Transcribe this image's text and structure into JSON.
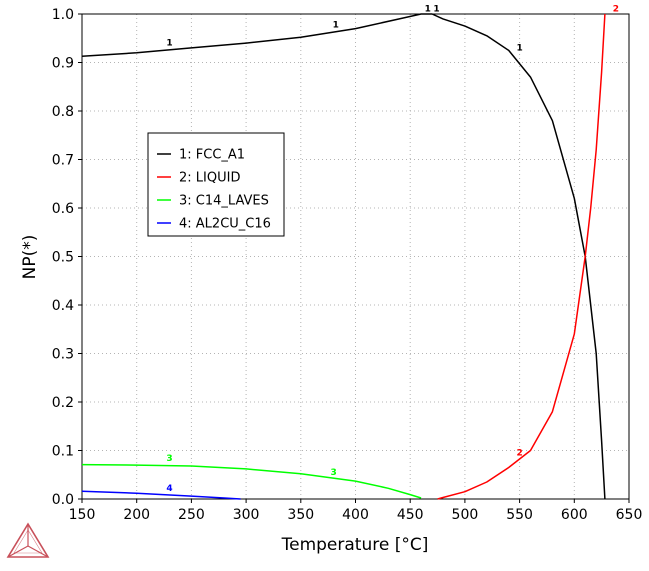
{
  "chart_data": {
    "type": "line",
    "xlabel": "Temperature [°C]",
    "ylabel": "NP(*)",
    "xlim": [
      150,
      650
    ],
    "ylim": [
      0,
      1.0
    ],
    "xticks": [
      150,
      200,
      250,
      300,
      350,
      400,
      450,
      500,
      550,
      600,
      650
    ],
    "yticks": [
      0.0,
      0.1,
      0.2,
      0.3,
      0.4,
      0.5,
      0.6,
      0.7,
      0.8,
      0.9,
      1.0
    ],
    "ytick_labels": [
      "0.0",
      "0.1",
      "0.2",
      "0.3",
      "0.4",
      "0.5",
      "0.6",
      "0.7",
      "0.8",
      "0.9",
      "1.0"
    ],
    "grid": true,
    "legend_position": "upper-left",
    "series": [
      {
        "id": "1",
        "name": "1: FCC_A1",
        "color": "#000000",
        "x": [
          150,
          200,
          250,
          300,
          350,
          400,
          440,
          460,
          470,
          480,
          500,
          520,
          540,
          560,
          580,
          600,
          610,
          620,
          625,
          628
        ],
        "y": [
          0.913,
          0.92,
          0.93,
          0.94,
          0.952,
          0.97,
          0.99,
          1.0,
          1.0,
          0.99,
          0.975,
          0.955,
          0.925,
          0.87,
          0.78,
          0.62,
          0.5,
          0.3,
          0.12,
          0.0
        ]
      },
      {
        "id": "2",
        "name": "2: LIQUID",
        "color": "#ff0000",
        "x": [
          475,
          480,
          500,
          520,
          540,
          560,
          580,
          600,
          610,
          615,
          620,
          625,
          628
        ],
        "y": [
          0.0,
          0.003,
          0.015,
          0.035,
          0.065,
          0.1,
          0.18,
          0.34,
          0.5,
          0.6,
          0.72,
          0.88,
          1.0
        ]
      },
      {
        "id": "3",
        "name": "3: C14_LAVES",
        "color": "#00ff00",
        "x": [
          150,
          200,
          250,
          300,
          350,
          400,
          430,
          450,
          460
        ],
        "y": [
          0.071,
          0.07,
          0.068,
          0.062,
          0.052,
          0.037,
          0.022,
          0.009,
          0.002
        ]
      },
      {
        "id": "4",
        "name": "4: AL2CU_C16",
        "color": "#0000ff",
        "x": [
          150,
          200,
          250,
          280,
          295
        ],
        "y": [
          0.016,
          0.012,
          0.006,
          0.002,
          0.0
        ]
      }
    ],
    "curve_labels": [
      {
        "text": "1",
        "series": "1",
        "x": 230,
        "y": 0.935
      },
      {
        "text": "1",
        "series": "1",
        "x": 382,
        "y": 0.972
      },
      {
        "text": "1",
        "series": "1",
        "x": 466,
        "y": 1.005
      },
      {
        "text": "1",
        "series": "1",
        "x": 474,
        "y": 1.005
      },
      {
        "text": "1",
        "series": "1",
        "x": 550,
        "y": 0.925
      },
      {
        "text": "2",
        "series": "2",
        "x": 550,
        "y": 0.09
      },
      {
        "text": "2",
        "series": "2",
        "x": 638,
        "y": 1.005
      },
      {
        "text": "3",
        "series": "3",
        "x": 230,
        "y": 0.078
      },
      {
        "text": "3",
        "series": "3",
        "x": 380,
        "y": 0.05
      },
      {
        "text": "4",
        "series": "4",
        "x": 230,
        "y": 0.017
      }
    ]
  }
}
